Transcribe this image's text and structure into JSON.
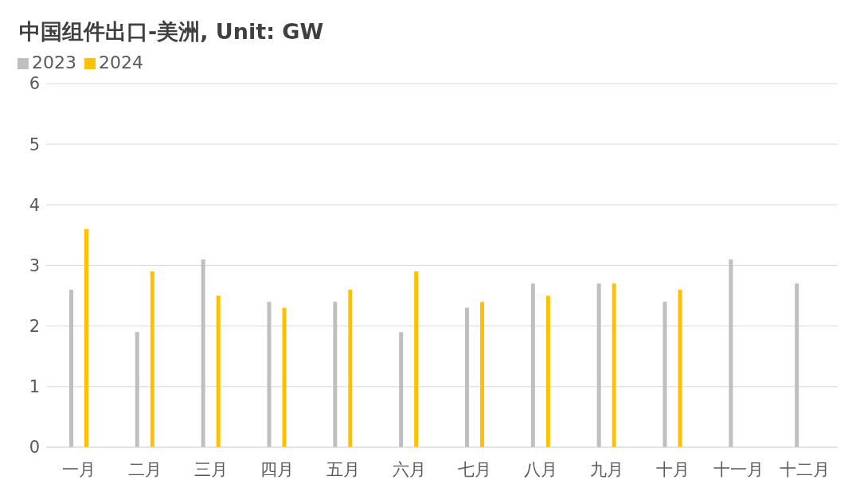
{
  "chart_data": {
    "type": "bar",
    "title": "中国组件出口-美洲, Unit: GW",
    "categories": [
      "一月",
      "二月",
      "三月",
      "四月",
      "五月",
      "六月",
      "七月",
      "八月",
      "九月",
      "十月",
      "十一月",
      "十二月"
    ],
    "series": [
      {
        "name": "2023",
        "color": "#bfbfbf",
        "values": [
          2.6,
          1.9,
          3.1,
          2.4,
          2.4,
          1.9,
          2.3,
          2.7,
          2.7,
          2.4,
          3.1,
          2.7
        ]
      },
      {
        "name": "2024",
        "color": "#ffc000",
        "values": [
          3.6,
          2.9,
          2.5,
          2.3,
          2.6,
          2.9,
          2.4,
          2.5,
          2.7,
          2.6,
          null,
          null
        ]
      }
    ],
    "ylim": [
      0,
      6
    ],
    "yticks": [
      0,
      1,
      2,
      3,
      4,
      5,
      6
    ],
    "grid": "y",
    "legend": "top left"
  }
}
